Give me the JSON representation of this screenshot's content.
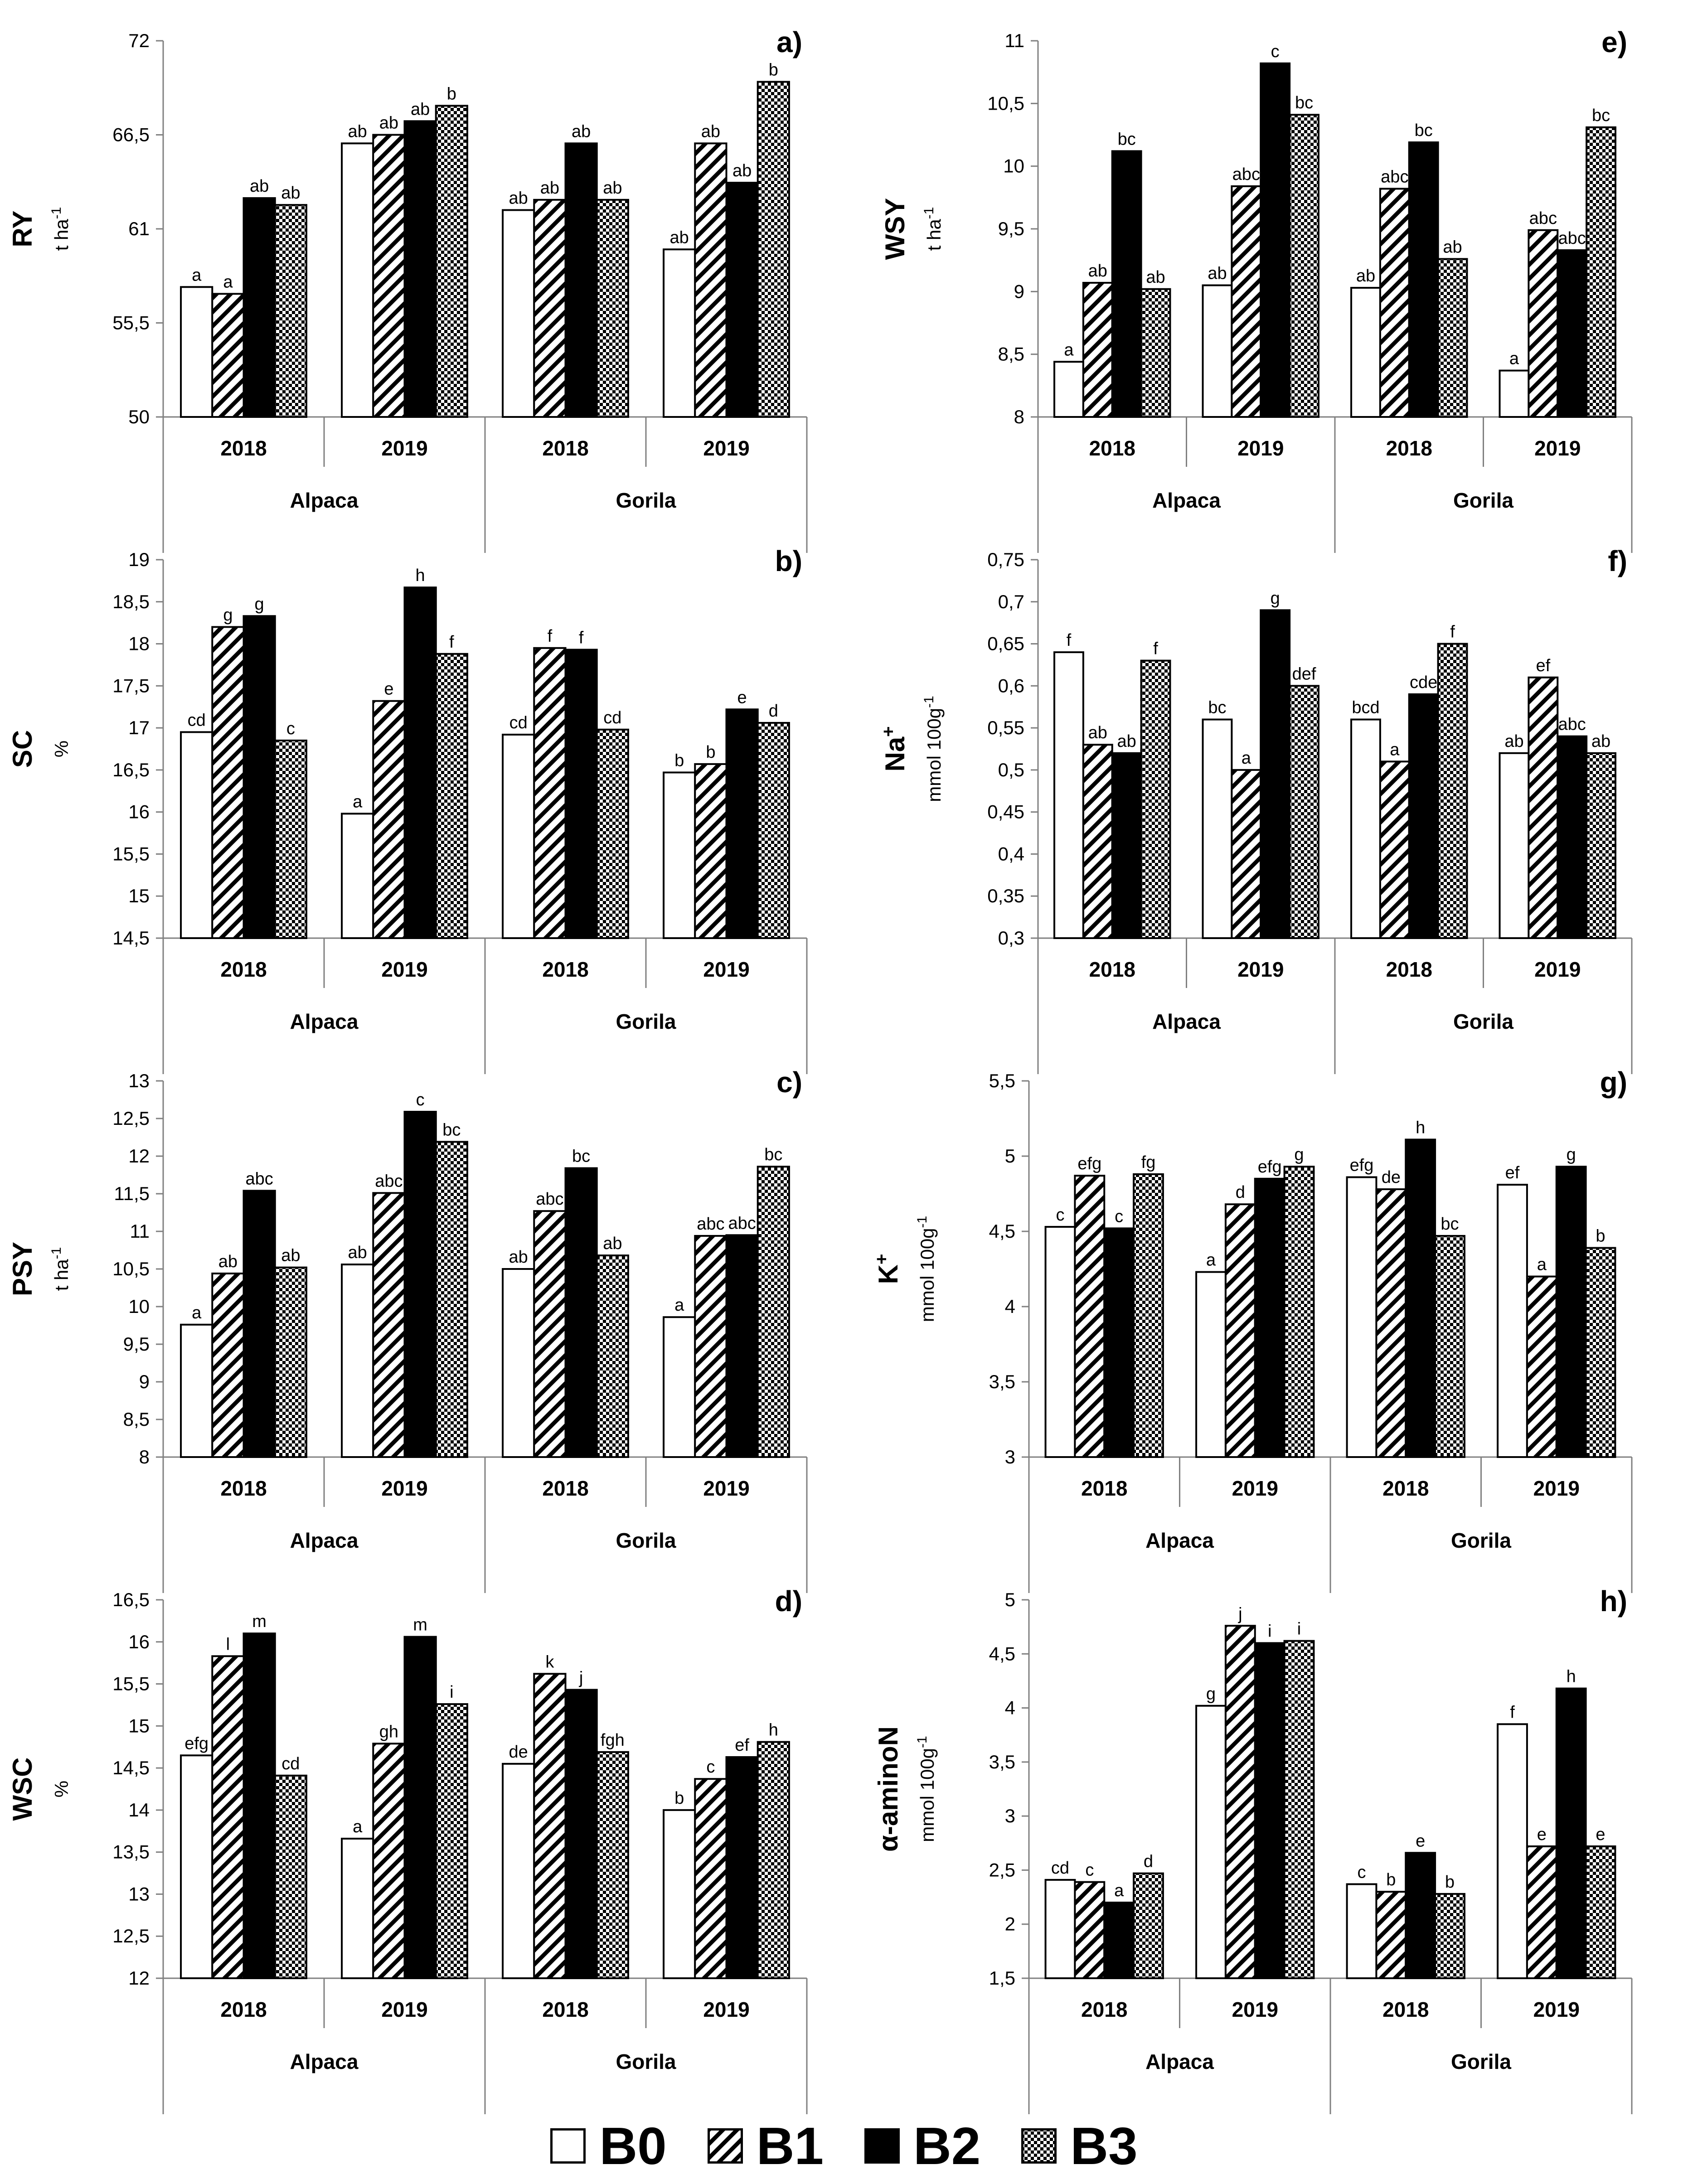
{
  "colors": {
    "B0": "#ffffff",
    "B2": "#000000",
    "line": "#000000",
    "axisLine": "#808080"
  },
  "legend": [
    {
      "key": "B0",
      "label": "B0",
      "pattern": "white"
    },
    {
      "key": "B1",
      "label": "B1",
      "pattern": "diag"
    },
    {
      "key": "B2",
      "label": "B2",
      "pattern": "black"
    },
    {
      "key": "B3",
      "label": "B3",
      "pattern": "check"
    }
  ],
  "chart_data": [
    {
      "id": "a",
      "type": "bar",
      "panel_label": "a)",
      "title_label": "RY",
      "unit_label": "t ha-1",
      "ylim": [
        50,
        72
      ],
      "ticks": [
        "50",
        "55,5",
        "61",
        "66,5",
        "72"
      ],
      "categories": [
        "2018",
        "2019",
        "2018",
        "2019"
      ],
      "groups": [
        "Alpaca",
        "Gorila"
      ],
      "series": [
        {
          "name": "B0",
          "values": [
            57.6,
            66.0,
            62.1,
            59.8
          ],
          "letters": [
            "a",
            "ab",
            "ab",
            "ab"
          ]
        },
        {
          "name": "B1",
          "values": [
            57.2,
            66.5,
            62.7,
            66.0
          ],
          "letters": [
            "a",
            "ab",
            "ab",
            "ab"
          ]
        },
        {
          "name": "B2",
          "values": [
            62.8,
            67.3,
            66.0,
            63.7
          ],
          "letters": [
            "ab",
            "ab",
            "ab",
            "ab"
          ]
        },
        {
          "name": "B3",
          "values": [
            62.4,
            68.2,
            62.7,
            69.6
          ],
          "letters": [
            "ab",
            "b",
            "ab",
            "b"
          ]
        }
      ]
    },
    {
      "id": "e",
      "type": "bar",
      "panel_label": "e)",
      "title_label": "WSY",
      "unit_label": "t ha-1",
      "ylim": [
        8,
        11
      ],
      "ticks": [
        "8",
        "8,5",
        "9",
        "9,5",
        "10",
        "10,5",
        "11"
      ],
      "categories": [
        "2018",
        "2019",
        "2018",
        "2019"
      ],
      "groups": [
        "Alpaca",
        "Gorila"
      ],
      "series": [
        {
          "name": "B0",
          "values": [
            8.44,
            9.05,
            9.03,
            8.37
          ],
          "letters": [
            "a",
            "ab",
            "ab",
            "a"
          ]
        },
        {
          "name": "B1",
          "values": [
            9.07,
            9.84,
            9.82,
            9.49
          ],
          "letters": [
            "ab",
            "abc",
            "abc",
            "abc"
          ]
        },
        {
          "name": "B2",
          "values": [
            10.12,
            10.82,
            10.19,
            9.33
          ],
          "letters": [
            "bc",
            "c",
            "bc",
            "abc"
          ]
        },
        {
          "name": "B3",
          "values": [
            9.02,
            10.41,
            9.26,
            10.31
          ],
          "letters": [
            "ab",
            "bc",
            "ab",
            "bc"
          ]
        }
      ]
    },
    {
      "id": "b",
      "type": "bar",
      "panel_label": "b)",
      "title_label": "SC",
      "unit_label": "%",
      "ylim": [
        14.5,
        19
      ],
      "ticks": [
        "14,5",
        "15",
        "15,5",
        "16",
        "16,5",
        "17",
        "17,5",
        "18",
        "18,5",
        "19"
      ],
      "categories": [
        "2018",
        "2019",
        "2018",
        "2019"
      ],
      "groups": [
        "Alpaca",
        "Gorila"
      ],
      "series": [
        {
          "name": "B0",
          "values": [
            16.95,
            15.98,
            16.92,
            16.47
          ],
          "letters": [
            "cd",
            "a",
            "cd",
            "b"
          ]
        },
        {
          "name": "B1",
          "values": [
            18.2,
            17.32,
            17.95,
            16.57
          ],
          "letters": [
            "g",
            "e",
            "f",
            "b"
          ]
        },
        {
          "name": "B2",
          "values": [
            18.33,
            18.67,
            17.93,
            17.22
          ],
          "letters": [
            "g",
            "h",
            "f",
            "e"
          ]
        },
        {
          "name": "B3",
          "values": [
            16.85,
            17.88,
            16.98,
            17.06
          ],
          "letters": [
            "c",
            "f",
            "cd",
            "d"
          ]
        }
      ]
    },
    {
      "id": "f",
      "type": "bar",
      "panel_label": "f)",
      "title_label": "Na+",
      "unit_label": "mmol 100g-1",
      "ylim": [
        0.3,
        0.75
      ],
      "ticks": [
        "0,3",
        "0,35",
        "0,4",
        "0,45",
        "0,5",
        "0,55",
        "0,6",
        "0,65",
        "0,7",
        "0,75"
      ],
      "categories": [
        "2018",
        "2019",
        "2018",
        "2019"
      ],
      "groups": [
        "Alpaca",
        "Gorila"
      ],
      "series": [
        {
          "name": "B0",
          "values": [
            0.64,
            0.56,
            0.56,
            0.52
          ],
          "letters": [
            "f",
            "bc",
            "bcd",
            "ab"
          ]
        },
        {
          "name": "B1",
          "values": [
            0.53,
            0.5,
            0.51,
            0.61
          ],
          "letters": [
            "ab",
            "a",
            "a",
            "ef"
          ]
        },
        {
          "name": "B2",
          "values": [
            0.52,
            0.69,
            0.59,
            0.54
          ],
          "letters": [
            "ab",
            "g",
            "cde",
            "abc"
          ]
        },
        {
          "name": "B3",
          "values": [
            0.63,
            0.6,
            0.65,
            0.52
          ],
          "letters": [
            "f",
            "def",
            "f",
            "ab"
          ]
        }
      ]
    },
    {
      "id": "c",
      "type": "bar",
      "panel_label": "c)",
      "title_label": "PSY",
      "unit_label": "t ha-1",
      "ylim": [
        8,
        13
      ],
      "ticks": [
        "8",
        "8,5",
        "9",
        "9,5",
        "10",
        "10,5",
        "11",
        "11,5",
        "12",
        "12,5",
        "13"
      ],
      "categories": [
        "2018",
        "2019",
        "2018",
        "2019"
      ],
      "groups": [
        "Alpaca",
        "Gorila"
      ],
      "series": [
        {
          "name": "B0",
          "values": [
            9.76,
            10.56,
            10.5,
            9.86
          ],
          "letters": [
            "a",
            "ab",
            "ab",
            "a"
          ]
        },
        {
          "name": "B1",
          "values": [
            10.44,
            11.51,
            11.27,
            10.94
          ],
          "letters": [
            "ab",
            "abc",
            "abc",
            "abc"
          ]
        },
        {
          "name": "B2",
          "values": [
            11.54,
            12.59,
            11.84,
            10.95
          ],
          "letters": [
            "abc",
            "c",
            "bc",
            "abc"
          ]
        },
        {
          "name": "B3",
          "values": [
            10.52,
            12.19,
            10.68,
            11.86
          ],
          "letters": [
            "ab",
            "bc",
            "ab",
            "bc"
          ]
        }
      ]
    },
    {
      "id": "g",
      "type": "bar",
      "panel_label": "g)",
      "title_label": "K+",
      "unit_label": "mmol 100g-1",
      "ylim": [
        3,
        5.5
      ],
      "ticks": [
        "3",
        "3,5",
        "4",
        "4,5",
        "5",
        "5,5"
      ],
      "categories": [
        "2018",
        "2019",
        "2018",
        "2019"
      ],
      "groups": [
        "Alpaca",
        "Gorila"
      ],
      "series": [
        {
          "name": "B0",
          "values": [
            4.53,
            4.23,
            4.86,
            4.81
          ],
          "letters": [
            "c",
            "a",
            "efg",
            "ef"
          ]
        },
        {
          "name": "B1",
          "values": [
            4.87,
            4.68,
            4.78,
            4.2
          ],
          "letters": [
            "efg",
            "d",
            "de",
            "a"
          ]
        },
        {
          "name": "B2",
          "values": [
            4.52,
            4.85,
            5.11,
            4.93
          ],
          "letters": [
            "c",
            "efg",
            "h",
            "g"
          ]
        },
        {
          "name": "B3",
          "values": [
            4.88,
            4.93,
            4.47,
            4.39
          ],
          "letters": [
            "fg",
            "g",
            "bc",
            "b"
          ]
        }
      ]
    },
    {
      "id": "d",
      "type": "bar",
      "panel_label": "d)",
      "title_label": "WSC",
      "unit_label": "%",
      "ylim": [
        12,
        16.5
      ],
      "ticks": [
        "12",
        "12,5",
        "13",
        "13,5",
        "14",
        "14,5",
        "15",
        "15,5",
        "16",
        "16,5"
      ],
      "categories": [
        "2018",
        "2019",
        "2018",
        "2019"
      ],
      "groups": [
        "Alpaca",
        "Gorila"
      ],
      "series": [
        {
          "name": "B0",
          "values": [
            14.65,
            13.66,
            14.55,
            14.0
          ],
          "letters": [
            "efg",
            "a",
            "de",
            "b"
          ]
        },
        {
          "name": "B1",
          "values": [
            15.83,
            14.79,
            15.62,
            14.37
          ],
          "letters": [
            "l",
            "gh",
            "k",
            "c"
          ]
        },
        {
          "name": "B2",
          "values": [
            16.1,
            16.06,
            15.43,
            14.63
          ],
          "letters": [
            "m",
            "m",
            "j",
            "ef"
          ]
        },
        {
          "name": "B3",
          "values": [
            14.41,
            15.26,
            14.69,
            14.81
          ],
          "letters": [
            "cd",
            "i",
            "fgh",
            "h"
          ]
        }
      ]
    },
    {
      "id": "h",
      "type": "bar",
      "panel_label": "h)",
      "title_label": "α-aminoN",
      "unit_label": "mmol 100g-1",
      "ylim": [
        1.5,
        5
      ],
      "ticks": [
        "1,5",
        "2",
        "2,5",
        "3",
        "3,5",
        "4",
        "4,5",
        "5"
      ],
      "categories": [
        "2018",
        "2019",
        "2018",
        "2019"
      ],
      "groups": [
        "Alpaca",
        "Gorila"
      ],
      "series": [
        {
          "name": "B0",
          "values": [
            2.41,
            4.02,
            2.37,
            3.85
          ],
          "letters": [
            "cd",
            "g",
            "c",
            "f"
          ]
        },
        {
          "name": "B1",
          "values": [
            2.39,
            4.76,
            2.3,
            2.72
          ],
          "letters": [
            "c",
            "j",
            "b",
            "e"
          ]
        },
        {
          "name": "B2",
          "values": [
            2.2,
            4.6,
            2.66,
            4.18
          ],
          "letters": [
            "a",
            "i",
            "e",
            "h"
          ]
        },
        {
          "name": "B3",
          "values": [
            2.47,
            4.62,
            2.28,
            2.72
          ],
          "letters": [
            "d",
            "i",
            "b",
            "e"
          ]
        }
      ]
    }
  ]
}
